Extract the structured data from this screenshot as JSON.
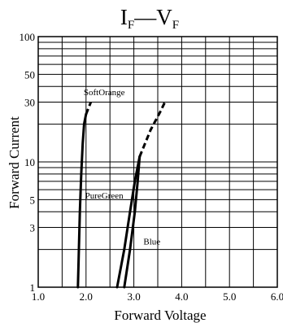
{
  "chart_data": {
    "type": "line",
    "title": {
      "main_left": "I",
      "sub_left": "F",
      "dash": "—",
      "main_right": "V",
      "sub_right": "F"
    },
    "xlabel": "Forward Voltage",
    "ylabel": "Forward Current",
    "xscale": "linear",
    "yscale": "log",
    "xlim": [
      1.0,
      6.0
    ],
    "ylim": [
      1,
      100
    ],
    "xticks": [
      {
        "value": 1.0,
        "label": "1.0"
      },
      {
        "value": 2.0,
        "label": "2.0"
      },
      {
        "value": 3.0,
        "label": "3.0"
      },
      {
        "value": 4.0,
        "label": "4.0"
      },
      {
        "value": 5.0,
        "label": "5.0"
      },
      {
        "value": 6.0,
        "label": "6.0"
      }
    ],
    "yticks": [
      {
        "value": 1,
        "label": "1"
      },
      {
        "value": 3,
        "label": "3"
      },
      {
        "value": 5,
        "label": "5"
      },
      {
        "value": 10,
        "label": "10"
      },
      {
        "value": 30,
        "label": "30"
      },
      {
        "value": 50,
        "label": "50"
      },
      {
        "value": 100,
        "label": "100"
      }
    ],
    "x_gridlines": [
      1.0,
      1.5,
      2.0,
      2.5,
      3.0,
      3.5,
      4.0,
      4.5,
      5.0,
      5.5,
      6.0
    ],
    "y_gridlines": [
      1,
      2,
      3,
      4,
      5,
      6,
      7,
      8,
      9,
      10,
      20,
      30,
      40,
      50,
      60,
      70,
      80,
      90,
      100
    ],
    "grid": true,
    "series": [
      {
        "name": "SoftOrange",
        "label_at": [
          1.95,
          34
        ],
        "solid": [
          [
            1.83,
            1
          ],
          [
            1.85,
            2
          ],
          [
            1.87,
            4
          ],
          [
            1.9,
            8
          ],
          [
            1.93,
            14
          ],
          [
            1.96,
            20
          ],
          [
            2.0,
            24
          ]
        ],
        "dashed": [
          [
            2.0,
            24
          ],
          [
            2.1,
            30
          ]
        ]
      },
      {
        "name": "PureGreen",
        "label_at": [
          1.98,
          5.1
        ],
        "solid": [
          [
            2.65,
            1
          ],
          [
            2.8,
            2
          ],
          [
            2.92,
            4
          ],
          [
            3.02,
            7
          ],
          [
            3.12,
            11
          ]
        ],
        "dashed": [
          [
            3.12,
            11
          ],
          [
            3.35,
            18
          ],
          [
            3.55,
            25
          ],
          [
            3.65,
            30
          ]
        ]
      },
      {
        "name": "Blue",
        "label_at": [
          3.2,
          2.2
        ],
        "solid": [
          [
            2.8,
            1
          ],
          [
            2.92,
            2
          ],
          [
            3.02,
            4
          ],
          [
            3.08,
            7
          ],
          [
            3.12,
            11
          ]
        ],
        "dashed": []
      }
    ]
  }
}
